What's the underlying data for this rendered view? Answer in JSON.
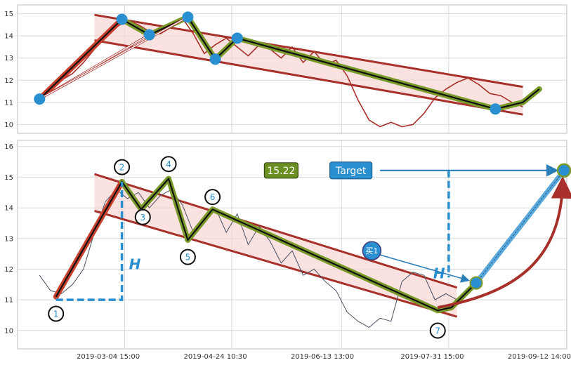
{
  "chart_data": [
    {
      "type": "line",
      "ylim": [
        9.6,
        15.4
      ],
      "yticks": [
        10,
        11,
        12,
        13,
        14,
        15
      ],
      "grid": true,
      "series": [
        {
          "x": [
            0.04,
            0.06,
            0.08,
            0.1,
            0.12,
            0.14,
            0.16,
            0.18,
            0.2,
            0.22,
            0.24,
            0.26,
            0.28,
            0.3,
            0.32,
            0.34,
            0.36,
            0.38,
            0.4,
            0.42,
            0.44,
            0.46,
            0.48,
            0.5,
            0.52,
            0.54,
            0.56,
            0.58,
            0.6,
            0.62,
            0.64,
            0.66,
            0.68,
            0.7,
            0.72,
            0.74,
            0.76,
            0.78,
            0.8,
            0.82,
            0.84,
            0.86,
            0.88,
            0.9,
            0.92
          ],
          "y": [
            11.2,
            11.6,
            12.0,
            12.3,
            12.8,
            13.4,
            13.9,
            14.4,
            14.7,
            14.5,
            14.2,
            14.1,
            14.4,
            14.8,
            14.1,
            13.2,
            13.6,
            13.9,
            13.5,
            13.1,
            13.6,
            13.4,
            13.0,
            13.5,
            12.8,
            13.3,
            12.7,
            12.9,
            12.2,
            11.1,
            10.2,
            9.9,
            10.1,
            9.9,
            10.0,
            10.5,
            11.2,
            11.6,
            11.9,
            12.1,
            11.8,
            11.4,
            11.3,
            11.0,
            10.8
          ]
        }
      ],
      "markers": [
        {
          "x": 0.04,
          "y": 11.15
        },
        {
          "x": 0.19,
          "y": 14.75
        },
        {
          "x": 0.24,
          "y": 14.05
        },
        {
          "x": 0.31,
          "y": 14.85
        },
        {
          "x": 0.36,
          "y": 12.95
        },
        {
          "x": 0.4,
          "y": 13.9
        },
        {
          "x": 0.87,
          "y": 10.7
        }
      ],
      "channel": {
        "x0": 0.14,
        "x1": 0.92,
        "upper": [
          14.95,
          11.7
        ],
        "lower": [
          13.8,
          10.45
        ]
      },
      "path": [
        {
          "x": 0.04,
          "y": 11.15
        },
        {
          "x": 0.19,
          "y": 14.75
        },
        {
          "x": 0.24,
          "y": 14.05
        },
        {
          "x": 0.31,
          "y": 14.85
        },
        {
          "x": 0.36,
          "y": 12.95
        },
        {
          "x": 0.4,
          "y": 13.9
        },
        {
          "x": 0.87,
          "y": 10.7
        },
        {
          "x": 0.92,
          "y": 11.0
        },
        {
          "x": 0.95,
          "y": 11.6
        }
      ]
    },
    {
      "type": "line",
      "ylim": [
        9.4,
        16.2
      ],
      "yticks": [
        10,
        11,
        12,
        13,
        14,
        15,
        16
      ],
      "xticks": [
        "2019-03-04 15:00",
        "2019-04-24 10:30",
        "2019-06-13 13:00",
        "2019-07-31 15:00",
        "2019-09-12 14:00"
      ],
      "grid": true,
      "series": [
        {
          "x": [
            0.04,
            0.06,
            0.08,
            0.1,
            0.12,
            0.14,
            0.16,
            0.18,
            0.2,
            0.22,
            0.24,
            0.26,
            0.28,
            0.3,
            0.32,
            0.34,
            0.36,
            0.38,
            0.4,
            0.42,
            0.44,
            0.46,
            0.48,
            0.5,
            0.52,
            0.54,
            0.56,
            0.58,
            0.6,
            0.62,
            0.64,
            0.66,
            0.68,
            0.7,
            0.72,
            0.74,
            0.76,
            0.78,
            0.8
          ],
          "y": [
            11.8,
            11.3,
            11.2,
            11.5,
            12.0,
            13.2,
            14.2,
            14.6,
            14.3,
            14.5,
            14.0,
            14.4,
            14.6,
            14.1,
            13.2,
            13.6,
            14.0,
            13.2,
            13.8,
            12.8,
            13.4,
            12.9,
            12.2,
            12.6,
            11.8,
            12.0,
            11.6,
            11.3,
            10.6,
            10.3,
            10.1,
            10.4,
            10.3,
            11.6,
            11.9,
            11.8,
            11.0,
            11.2,
            11.0
          ]
        }
      ],
      "channel": {
        "x0": 0.14,
        "x1": 0.8,
        "upper": [
          15.1,
          11.4
        ],
        "lower": [
          13.9,
          10.45
        ]
      },
      "path": [
        {
          "x": 0.07,
          "y": 11.1
        },
        {
          "x": 0.19,
          "y": 14.85
        },
        {
          "x": 0.225,
          "y": 13.95
        },
        {
          "x": 0.275,
          "y": 14.95
        },
        {
          "x": 0.31,
          "y": 12.95
        },
        {
          "x": 0.355,
          "y": 13.95
        },
        {
          "x": 0.765,
          "y": 10.65
        },
        {
          "x": 0.79,
          "y": 10.75
        },
        {
          "x": 0.835,
          "y": 11.55
        }
      ],
      "points": [
        {
          "label": "1",
          "x": 0.07,
          "y": 11.1
        },
        {
          "label": "2",
          "x": 0.19,
          "y": 14.85
        },
        {
          "label": "3",
          "x": 0.225,
          "y": 13.95
        },
        {
          "label": "4",
          "x": 0.275,
          "y": 14.95
        },
        {
          "label": "5",
          "x": 0.31,
          "y": 12.95
        },
        {
          "label": "6",
          "x": 0.355,
          "y": 13.95
        },
        {
          "label": "7",
          "x": 0.765,
          "y": 10.65
        }
      ],
      "buy_point": {
        "x": 0.835,
        "y": 11.55
      },
      "target_point": {
        "x": 0.995,
        "y": 15.22
      },
      "target_value": "15.22",
      "target_label": "Target",
      "buy_label": "买1",
      "height_label": "H"
    }
  ]
}
